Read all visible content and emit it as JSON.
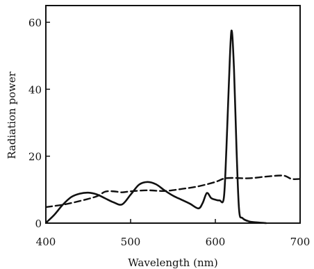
{
  "chart_data": {
    "type": "line",
    "xlabel": "Wavelength (nm)",
    "ylabel": "Radiation power",
    "xlim": [
      400,
      700
    ],
    "ylim": [
      0,
      65
    ],
    "xticks": [
      400,
      500,
      600,
      700
    ],
    "yticks": [
      0,
      20,
      40,
      60
    ],
    "xtick_labels": [
      "400",
      "500",
      "600",
      "700"
    ],
    "ytick_labels": [
      "0",
      "20",
      "40",
      "60"
    ],
    "grid": false,
    "series": [
      {
        "style": "solid",
        "x": [
          401,
          410,
          420,
          430,
          440,
          450,
          460,
          470,
          480,
          490,
          500,
          510,
          520,
          530,
          540,
          550,
          560,
          570,
          580,
          585,
          590,
          595,
          600,
          605,
          610,
          613,
          616,
          619,
          622,
          625,
          628,
          632,
          640,
          650,
          660
        ],
        "y": [
          0.3,
          2.5,
          5.5,
          7.8,
          8.8,
          9.1,
          8.6,
          7.4,
          6.2,
          5.6,
          8.5,
          11.5,
          12.3,
          11.6,
          9.8,
          8.2,
          7.0,
          5.8,
          4.4,
          6.0,
          9.0,
          7.5,
          7.0,
          6.8,
          7.5,
          22,
          42,
          57.5,
          46,
          22,
          4,
          1.5,
          0.5,
          0.2,
          0.0
        ]
      },
      {
        "style": "dashed",
        "x": [
          400,
          420,
          440,
          460,
          470,
          480,
          490,
          500,
          520,
          540,
          560,
          580,
          600,
          610,
          620,
          640,
          660,
          680,
          690,
          700
        ],
        "y": [
          4.8,
          5.5,
          6.6,
          8.0,
          9.4,
          9.5,
          9.2,
          9.5,
          9.8,
          9.6,
          10.2,
          11.0,
          12.3,
          13.3,
          13.5,
          13.4,
          13.9,
          14.2,
          13.2,
          13.2
        ]
      }
    ]
  }
}
